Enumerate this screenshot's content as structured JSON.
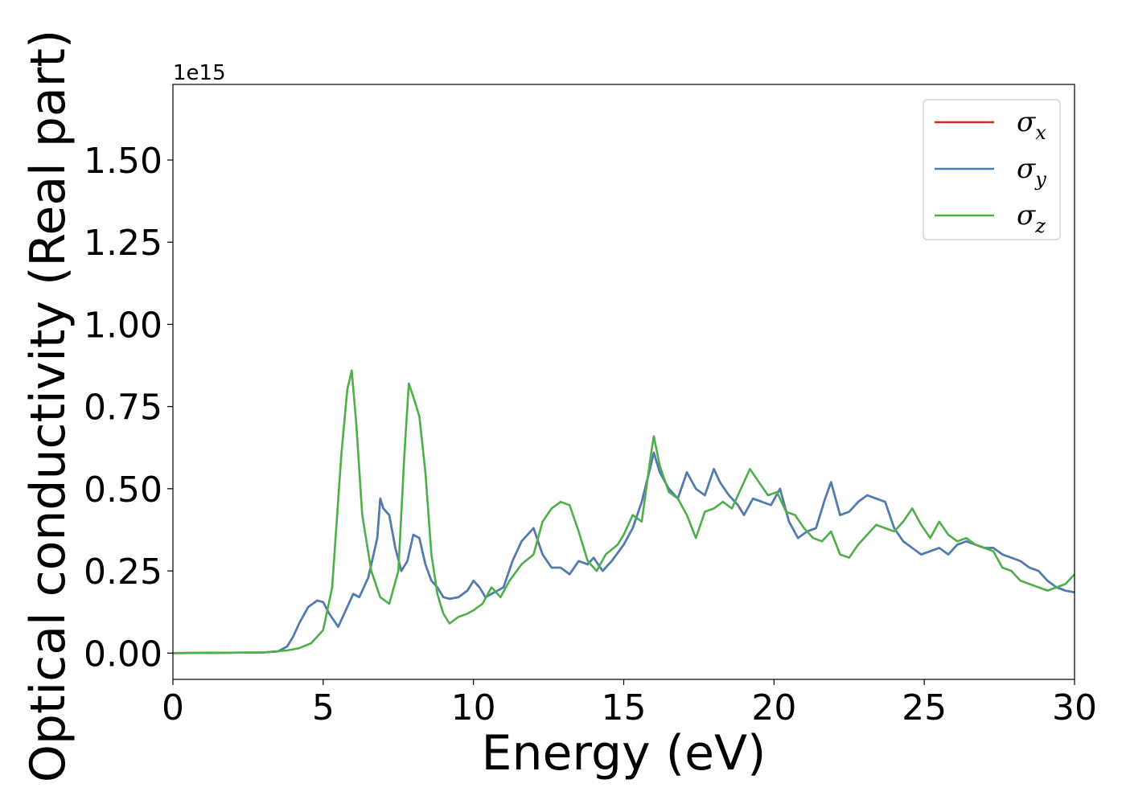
{
  "chart_data": {
    "type": "line",
    "xlabel": "Energy (eV)",
    "ylabel": "Optical conductivity (Real part)",
    "y_offset_label": "1e15",
    "xlim": [
      0,
      30
    ],
    "ylim": [
      -0.08,
      1.73
    ],
    "x_ticks": [
      0,
      5,
      10,
      15,
      20,
      25,
      30
    ],
    "x_tick_labels": [
      "0",
      "5",
      "10",
      "15",
      "20",
      "25",
      "30"
    ],
    "y_ticks": [
      0.0,
      0.25,
      0.5,
      0.75,
      1.0,
      1.25,
      1.5
    ],
    "y_tick_labels": [
      "0.00",
      "0.25",
      "0.50",
      "0.75",
      "1.00",
      "1.25",
      "1.50"
    ],
    "grid": false,
    "legend_position": "top-right",
    "series": [
      {
        "name": "x",
        "color": "#d62728",
        "x": [
          0,
          3,
          3.5,
          3.8,
          4.0,
          4.2,
          4.5,
          4.8,
          5.0,
          5.2,
          5.5,
          5.7,
          6.0,
          6.2,
          6.5,
          6.8,
          6.9,
          7.0,
          7.2,
          7.4,
          7.6,
          7.8,
          8.0,
          8.2,
          8.4,
          8.6,
          8.8,
          9.0,
          9.2,
          9.5,
          9.8,
          10.0,
          10.2,
          10.4,
          10.6,
          10.8,
          11.0,
          11.3,
          11.6,
          12.0,
          12.3,
          12.6,
          12.9,
          13.2,
          13.5,
          13.8,
          14.0,
          14.3,
          14.6,
          15.0,
          15.3,
          15.6,
          15.9,
          16.0,
          16.2,
          16.5,
          16.8,
          17.1,
          17.4,
          17.7,
          18.0,
          18.2,
          18.5,
          18.8,
          19.0,
          19.3,
          19.6,
          19.9,
          20.2,
          20.5,
          20.8,
          21.1,
          21.4,
          21.7,
          21.9,
          22.2,
          22.5,
          22.8,
          23.1,
          23.4,
          23.7,
          24.0,
          24.3,
          24.6,
          24.9,
          25.2,
          25.5,
          25.8,
          26.1,
          26.4,
          26.7,
          27.0,
          27.3,
          27.6,
          27.9,
          28.2,
          28.5,
          28.8,
          29.1,
          29.4,
          29.7,
          30.0
        ],
        "y": [
          0,
          0.002,
          0.005,
          0.02,
          0.05,
          0.09,
          0.14,
          0.16,
          0.155,
          0.12,
          0.08,
          0.12,
          0.18,
          0.17,
          0.23,
          0.35,
          0.47,
          0.44,
          0.42,
          0.32,
          0.25,
          0.28,
          0.36,
          0.35,
          0.27,
          0.22,
          0.2,
          0.17,
          0.165,
          0.17,
          0.19,
          0.22,
          0.2,
          0.17,
          0.18,
          0.19,
          0.2,
          0.28,
          0.34,
          0.38,
          0.3,
          0.26,
          0.26,
          0.24,
          0.28,
          0.27,
          0.29,
          0.25,
          0.28,
          0.33,
          0.38,
          0.46,
          0.57,
          0.61,
          0.55,
          0.5,
          0.47,
          0.55,
          0.5,
          0.48,
          0.56,
          0.52,
          0.48,
          0.45,
          0.42,
          0.47,
          0.46,
          0.45,
          0.5,
          0.4,
          0.35,
          0.37,
          0.38,
          0.47,
          0.52,
          0.42,
          0.43,
          0.46,
          0.48,
          0.47,
          0.46,
          0.38,
          0.34,
          0.32,
          0.3,
          0.31,
          0.32,
          0.3,
          0.33,
          0.34,
          0.33,
          0.32,
          0.32,
          0.3,
          0.29,
          0.28,
          0.26,
          0.25,
          0.22,
          0.2,
          0.19,
          0.185
        ]
      },
      {
        "name": "y",
        "color": "#4a7eb5",
        "x": [
          0,
          3,
          3.5,
          3.8,
          4.0,
          4.2,
          4.5,
          4.8,
          5.0,
          5.2,
          5.5,
          5.7,
          6.0,
          6.2,
          6.5,
          6.8,
          6.9,
          7.0,
          7.2,
          7.4,
          7.6,
          7.8,
          8.0,
          8.2,
          8.4,
          8.6,
          8.8,
          9.0,
          9.2,
          9.5,
          9.8,
          10.0,
          10.2,
          10.4,
          10.6,
          10.8,
          11.0,
          11.3,
          11.6,
          12.0,
          12.3,
          12.6,
          12.9,
          13.2,
          13.5,
          13.8,
          14.0,
          14.3,
          14.6,
          15.0,
          15.3,
          15.6,
          15.9,
          16.0,
          16.2,
          16.5,
          16.8,
          17.1,
          17.4,
          17.7,
          18.0,
          18.2,
          18.5,
          18.8,
          19.0,
          19.3,
          19.6,
          19.9,
          20.2,
          20.5,
          20.8,
          21.1,
          21.4,
          21.7,
          21.9,
          22.2,
          22.5,
          22.8,
          23.1,
          23.4,
          23.7,
          24.0,
          24.3,
          24.6,
          24.9,
          25.2,
          25.5,
          25.8,
          26.1,
          26.4,
          26.7,
          27.0,
          27.3,
          27.6,
          27.9,
          28.2,
          28.5,
          28.8,
          29.1,
          29.4,
          29.7,
          30.0
        ],
        "y": [
          0,
          0.002,
          0.005,
          0.02,
          0.05,
          0.09,
          0.14,
          0.16,
          0.155,
          0.12,
          0.08,
          0.12,
          0.18,
          0.17,
          0.23,
          0.35,
          0.47,
          0.44,
          0.42,
          0.32,
          0.25,
          0.28,
          0.36,
          0.35,
          0.27,
          0.22,
          0.2,
          0.17,
          0.165,
          0.17,
          0.19,
          0.22,
          0.2,
          0.17,
          0.18,
          0.19,
          0.2,
          0.28,
          0.34,
          0.38,
          0.3,
          0.26,
          0.26,
          0.24,
          0.28,
          0.27,
          0.29,
          0.25,
          0.28,
          0.33,
          0.38,
          0.46,
          0.57,
          0.61,
          0.55,
          0.5,
          0.47,
          0.55,
          0.5,
          0.48,
          0.56,
          0.52,
          0.48,
          0.45,
          0.42,
          0.47,
          0.46,
          0.45,
          0.5,
          0.4,
          0.35,
          0.37,
          0.38,
          0.47,
          0.52,
          0.42,
          0.43,
          0.46,
          0.48,
          0.47,
          0.46,
          0.38,
          0.34,
          0.32,
          0.3,
          0.31,
          0.32,
          0.3,
          0.33,
          0.34,
          0.33,
          0.32,
          0.32,
          0.3,
          0.29,
          0.28,
          0.26,
          0.25,
          0.22,
          0.2,
          0.19,
          0.185
        ]
      },
      {
        "name": "z",
        "color": "#4daf4a",
        "x": [
          0,
          3,
          3.8,
          4.2,
          4.6,
          5.0,
          5.3,
          5.6,
          5.8,
          5.95,
          6.1,
          6.3,
          6.6,
          6.9,
          7.2,
          7.5,
          7.7,
          7.85,
          8.0,
          8.2,
          8.4,
          8.6,
          8.8,
          9.0,
          9.2,
          9.5,
          9.8,
          10.0,
          10.3,
          10.6,
          10.9,
          11.2,
          11.6,
          12.0,
          12.3,
          12.6,
          12.9,
          13.2,
          13.5,
          13.8,
          14.1,
          14.4,
          14.8,
          15.0,
          15.3,
          15.6,
          15.9,
          16.0,
          16.2,
          16.5,
          16.8,
          17.1,
          17.4,
          17.7,
          18.0,
          18.3,
          18.6,
          18.9,
          19.2,
          19.5,
          19.8,
          20.1,
          20.4,
          20.7,
          21.0,
          21.3,
          21.6,
          21.9,
          22.2,
          22.5,
          22.8,
          23.1,
          23.4,
          23.7,
          24.0,
          24.3,
          24.6,
          24.9,
          25.2,
          25.5,
          25.8,
          26.1,
          26.4,
          26.7,
          27.0,
          27.3,
          27.6,
          27.9,
          28.2,
          28.5,
          28.8,
          29.1,
          29.4,
          29.7,
          30.0
        ],
        "y": [
          0,
          0.002,
          0.008,
          0.015,
          0.03,
          0.07,
          0.2,
          0.6,
          0.8,
          0.86,
          0.7,
          0.42,
          0.25,
          0.17,
          0.15,
          0.25,
          0.6,
          0.82,
          0.78,
          0.72,
          0.55,
          0.3,
          0.18,
          0.12,
          0.09,
          0.11,
          0.12,
          0.13,
          0.15,
          0.2,
          0.17,
          0.22,
          0.27,
          0.3,
          0.4,
          0.44,
          0.46,
          0.45,
          0.37,
          0.28,
          0.25,
          0.3,
          0.33,
          0.36,
          0.42,
          0.4,
          0.6,
          0.66,
          0.57,
          0.49,
          0.47,
          0.42,
          0.35,
          0.43,
          0.44,
          0.46,
          0.44,
          0.5,
          0.56,
          0.52,
          0.48,
          0.49,
          0.43,
          0.42,
          0.38,
          0.35,
          0.34,
          0.37,
          0.3,
          0.29,
          0.33,
          0.36,
          0.39,
          0.38,
          0.37,
          0.4,
          0.44,
          0.39,
          0.35,
          0.4,
          0.36,
          0.34,
          0.35,
          0.33,
          0.32,
          0.31,
          0.26,
          0.25,
          0.22,
          0.21,
          0.2,
          0.19,
          0.2,
          0.21,
          0.24
        ]
      }
    ]
  }
}
